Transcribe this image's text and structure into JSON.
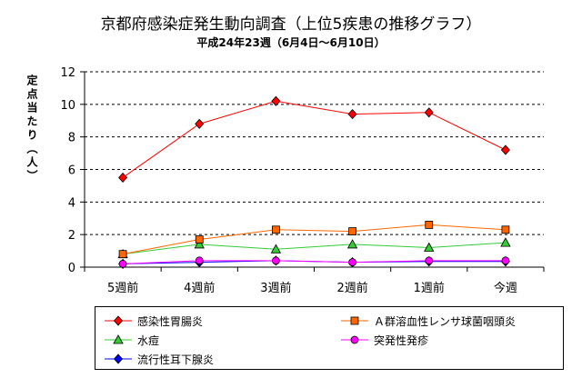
{
  "chart_data": {
    "type": "line",
    "title": "京都府感染症発生動向調査（上位5疾患の推移グラフ）",
    "subtitle": "平成24年23週（6月4日～6月10日）",
    "ylabel": "定点当たり（人）",
    "xlabel": "",
    "categories": [
      "5週前",
      "4週前",
      "3週前",
      "2週前",
      "1週前",
      "今週"
    ],
    "ylim": [
      0,
      12
    ],
    "yticks": [
      0,
      2,
      4,
      6,
      8,
      10,
      12
    ],
    "grid": true,
    "legend_position": "bottom",
    "series": [
      {
        "name": "感染性胃腸炎",
        "values": [
          5.5,
          8.8,
          10.2,
          9.4,
          9.5,
          7.2
        ],
        "color": "#ff0000",
        "marker": "diamond"
      },
      {
        "name": "Ａ群溶血性レンサ球菌咽頭炎",
        "values": [
          0.8,
          1.7,
          2.3,
          2.2,
          2.6,
          2.3
        ],
        "color": "#ff6600",
        "marker": "square"
      },
      {
        "name": "水痘",
        "values": [
          0.8,
          1.4,
          1.1,
          1.4,
          1.2,
          1.5
        ],
        "color": "#33cc33",
        "marker": "triangle"
      },
      {
        "name": "突発性発疹",
        "values": [
          0.2,
          0.4,
          0.4,
          0.3,
          0.4,
          0.4
        ],
        "color": "#ff00ff",
        "marker": "circle"
      },
      {
        "name": "流行性耳下腺炎",
        "values": [
          0.2,
          0.3,
          0.4,
          0.3,
          0.35,
          0.35
        ],
        "color": "#0000ff",
        "marker": "diamond"
      }
    ]
  }
}
